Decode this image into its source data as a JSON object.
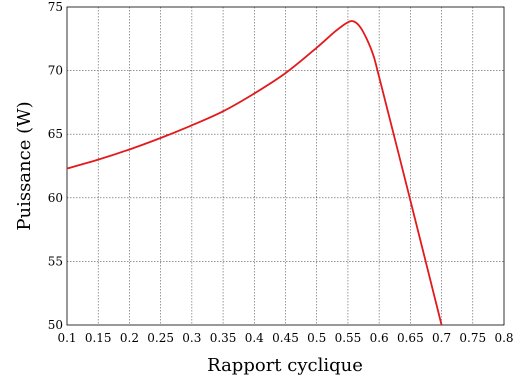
{
  "chart_data": {
    "type": "line",
    "title": "",
    "xlabel": "Rapport cyclique",
    "ylabel": "Puissance (W)",
    "xlim": [
      0.1,
      0.8
    ],
    "ylim": [
      50,
      75
    ],
    "grid": true,
    "x_ticks": [
      0.1,
      0.15,
      0.2,
      0.25,
      0.3,
      0.35,
      0.4,
      0.45,
      0.5,
      0.55,
      0.6,
      0.65,
      0.7,
      0.75,
      0.8
    ],
    "x_tick_labels": [
      "0.1",
      "0.15",
      "0.2",
      "0.25",
      "0.3",
      "0.35",
      "0.4",
      "0.45",
      "0.5",
      "0.55",
      "0.6",
      "0.65",
      "0.7",
      "0.75",
      "0.8"
    ],
    "y_ticks": [
      50,
      55,
      60,
      65,
      70,
      75
    ],
    "y_tick_labels": [
      "50",
      "55",
      "60",
      "65",
      "70",
      "75"
    ],
    "series": [
      {
        "color": "#e31a1c",
        "x": [
          0.1,
          0.15,
          0.2,
          0.25,
          0.3,
          0.35,
          0.4,
          0.45,
          0.5,
          0.53,
          0.55,
          0.56,
          0.57,
          0.58,
          0.59,
          0.6,
          0.65,
          0.7
        ],
        "y": [
          62.3,
          63.0,
          63.8,
          64.7,
          65.7,
          66.8,
          68.2,
          69.8,
          71.8,
          73.1,
          73.8,
          73.85,
          73.4,
          72.5,
          71.3,
          69.5,
          59.8,
          50.0
        ]
      }
    ]
  }
}
